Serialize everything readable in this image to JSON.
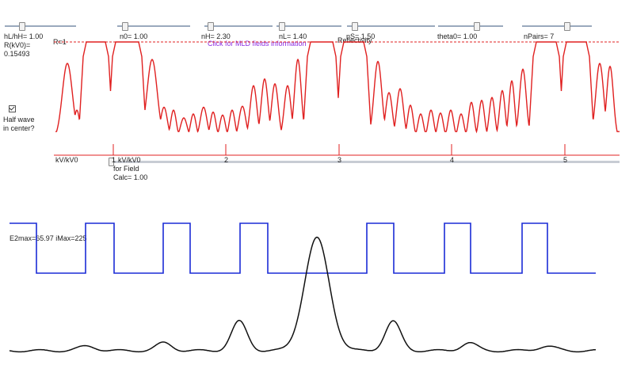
{
  "sliders": [
    {
      "id": "hl-hh",
      "label": "hL/hH= 1.00",
      "fraction": 0.2
    },
    {
      "id": "n0",
      "label": "n0= 1.00",
      "fraction": 0.06
    },
    {
      "id": "nh",
      "label": "nH= 2.30",
      "fraction": 0.05
    },
    {
      "id": "nl",
      "label": "nL= 1.40",
      "fraction": 0.04
    },
    {
      "id": "ns",
      "label": "nS= 1.50",
      "fraction": 0.05
    },
    {
      "id": "theta0",
      "label": "theta0= 1.00",
      "fraction": 0.55
    },
    {
      "id": "npairs",
      "label": "nPairs= 7",
      "fraction": 0.6
    }
  ],
  "info": {
    "r_label": "R(kV0)=",
    "r_value": "0.15493",
    "r1_label": "R=1",
    "mld_link": "Click for MLD fields information",
    "reflectivity": "Reflectivity",
    "half_wave_line1": "Half wave",
    "half_wave_line2": "in center?",
    "half_wave_checked": true,
    "x_axis_label": "kV/kV0",
    "field_calc_line1": "kV/kV0",
    "field_calc_line2": "for Field",
    "field_calc_line3": "Calc= 1.00",
    "e2max": "E2max=65.97 iMax=225"
  },
  "chart_data": {
    "type": "line",
    "x_ticks": [
      "1",
      "2",
      "3",
      "4",
      "5"
    ],
    "xlabel": "kV/kV0",
    "series": [
      {
        "name": "Reflectivity",
        "color": "#e02020"
      }
    ]
  },
  "colors": {
    "reflectivity": "#e02020",
    "index_profile": "#1a2bd6",
    "field": "#111111",
    "slider_track": "#9aa9bd"
  }
}
